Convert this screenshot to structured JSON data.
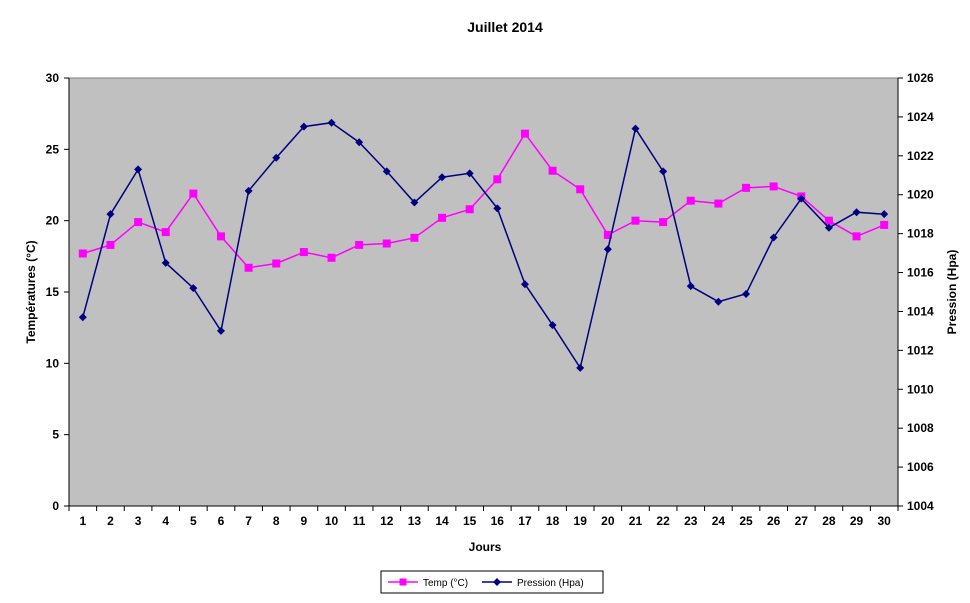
{
  "chart_data": {
    "type": "line",
    "title": "Juillet 2014",
    "xlabel": "Jours",
    "ylabel_left": "Températures (°C)",
    "ylabel_right": "Pression (Hpa)",
    "categories": [
      "1",
      "2",
      "3",
      "4",
      "5",
      "6",
      "7",
      "8",
      "9",
      "10",
      "11",
      "12",
      "13",
      "14",
      "15",
      "16",
      "17",
      "18",
      "19",
      "20",
      "21",
      "22",
      "23",
      "24",
      "25",
      "26",
      "27",
      "28",
      "29",
      "30"
    ],
    "y_left": {
      "min": 0,
      "max": 30,
      "ticks": [
        "0",
        "5",
        "10",
        "15",
        "20",
        "25",
        "30"
      ]
    },
    "y_right": {
      "min": 1004,
      "max": 1026,
      "ticks": [
        "1004",
        "1006",
        "1008",
        "1010",
        "1012",
        "1014",
        "1016",
        "1018",
        "1020",
        "1022",
        "1024",
        "1026"
      ]
    },
    "grid": false,
    "plot_background": "#C0C0C0",
    "legend_position": "bottom",
    "series": [
      {
        "name": "Temp (°C)",
        "axis": "left",
        "color": "#FF00FF",
        "marker": "square",
        "values": [
          17.7,
          18.3,
          19.9,
          19.2,
          21.9,
          18.9,
          16.7,
          17.0,
          17.8,
          17.4,
          18.3,
          18.4,
          18.8,
          20.2,
          20.8,
          22.9,
          26.1,
          23.5,
          22.2,
          19.0,
          20.0,
          19.9,
          21.4,
          21.2,
          22.3,
          22.4,
          21.7,
          20.0,
          18.9,
          19.7
        ]
      },
      {
        "name": "Pression (Hpa)",
        "axis": "right",
        "color": "#000080",
        "marker": "diamond",
        "values": [
          1013.7,
          1019.0,
          1021.3,
          1016.5,
          1015.2,
          1013.0,
          1020.2,
          1021.9,
          1023.5,
          1023.7,
          1022.7,
          1021.2,
          1019.6,
          1020.9,
          1021.1,
          1019.3,
          1015.4,
          1013.3,
          1011.1,
          1017.2,
          1023.4,
          1021.2,
          1015.3,
          1014.5,
          1014.9,
          1017.8,
          1019.8,
          1018.3,
          1019.1,
          1019.0
        ]
      }
    ]
  }
}
